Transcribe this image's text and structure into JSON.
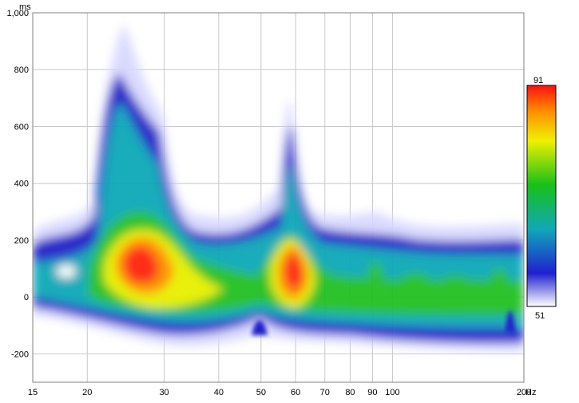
{
  "chart_data": {
    "type": "heatmap",
    "title": "",
    "xlabel": "",
    "ylabel": "",
    "x_unit": "Hz",
    "y_unit": "ms",
    "x_scale": "log",
    "xlim": [
      15,
      200
    ],
    "ylim": [
      -300,
      1000
    ],
    "x_ticks": [
      15,
      20,
      30,
      40,
      50,
      60,
      70,
      80,
      90,
      100,
      200
    ],
    "x_tick_labels": [
      "15",
      "20",
      "30",
      "40",
      "50",
      "60",
      "70",
      "80",
      "90",
      "100",
      "200"
    ],
    "y_ticks": [
      -200,
      0,
      200,
      400,
      600,
      800,
      1000
    ],
    "y_tick_labels": [
      "-200",
      "0",
      "200",
      "400",
      "600",
      "800",
      "1,000"
    ],
    "grid": true,
    "colorbar": {
      "min": 51,
      "max": 91,
      "min_label": "51",
      "max_label": "91",
      "colors": [
        "#ffffff",
        "#1010cc",
        "#10b0b0",
        "#20c020",
        "#e8f000",
        "#ff9000",
        "#ff1010"
      ]
    },
    "hotspots": [
      {
        "freq_hz": 27,
        "time_ms": 110,
        "level": 91
      },
      {
        "freq_hz": 60,
        "time_ms": 80,
        "level": 91
      },
      {
        "freq_hz": 25,
        "time_ms": 700,
        "level": 60
      },
      {
        "freq_hz": 60,
        "time_ms": 500,
        "level": 64
      },
      {
        "freq_hz": 92,
        "time_ms": 50,
        "level": 72
      }
    ]
  }
}
